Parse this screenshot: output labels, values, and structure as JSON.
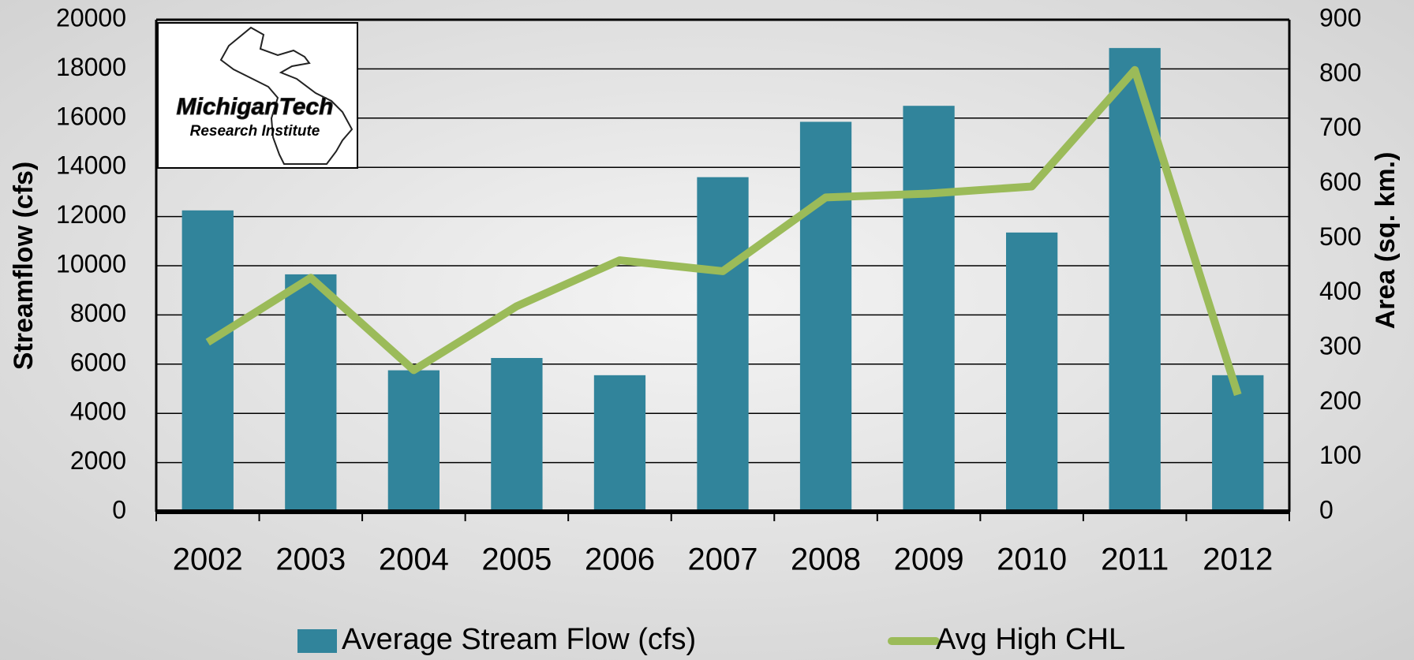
{
  "chart_data": {
    "type": "bar",
    "logo": {
      "name": "MichiganTech",
      "subtitle": "Research Institute"
    },
    "ylabel": "Streamflow (cfs)",
    "y2label": "Area (sq. km.)",
    "categories": [
      "2002",
      "2003",
      "2004",
      "2005",
      "2006",
      "2007",
      "2008",
      "2009",
      "2010",
      "2011",
      "2012"
    ],
    "series": [
      {
        "name": "Average Stream Flow (cfs)",
        "type": "bar",
        "color": "#31849b",
        "values": [
          12250,
          9650,
          5750,
          6250,
          5550,
          13600,
          15850,
          16500,
          11350,
          18850,
          5550
        ]
      },
      {
        "name": "Avg High CHL",
        "type": "line",
        "axis": "y2",
        "color": "#9bbb59",
        "values": [
          310,
          428,
          259,
          376,
          460,
          440,
          575,
          582,
          595,
          808,
          214
        ]
      }
    ],
    "ylim": [
      0,
      20000
    ],
    "yticks": [
      0,
      2000,
      4000,
      6000,
      8000,
      10000,
      12000,
      14000,
      16000,
      18000,
      20000
    ],
    "y2lim": [
      0,
      900
    ],
    "y2ticks": [
      0,
      100,
      200,
      300,
      400,
      500,
      600,
      700,
      800,
      900
    ],
    "grid": true
  }
}
